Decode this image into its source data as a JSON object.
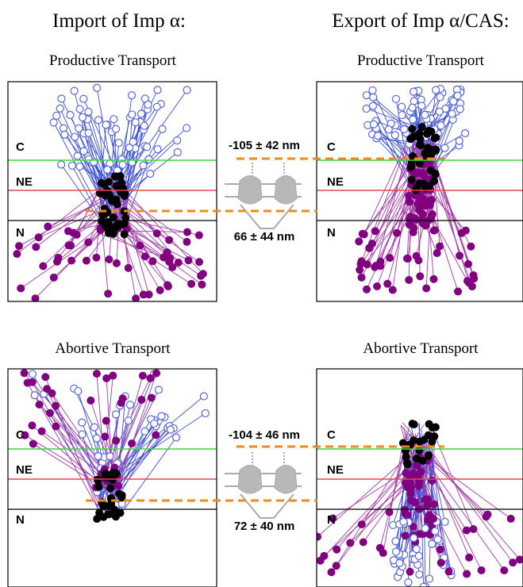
{
  "columns": [
    {
      "title": "Import of Imp α:",
      "panels": [
        {
          "title": "Productive Transport",
          "labels": [
            "C",
            "NE",
            "N"
          ]
        },
        {
          "title": "Abortive Transport",
          "labels": [
            "C",
            "NE",
            "N"
          ]
        }
      ]
    },
    {
      "title": "Export of Imp α/CAS:",
      "panels": [
        {
          "title": "Productive Transport",
          "labels": [
            "C",
            "NE",
            "N"
          ]
        },
        {
          "title": "Abortive Transport",
          "labels": [
            "C",
            "NE",
            "N"
          ]
        }
      ]
    }
  ],
  "measurements": [
    {
      "upper": "-105 ± 42 nm",
      "lower": "66 ± 44 nm"
    },
    {
      "upper": "-104 ± 46 nm",
      "lower": "72 ± 40 nm"
    }
  ]
}
